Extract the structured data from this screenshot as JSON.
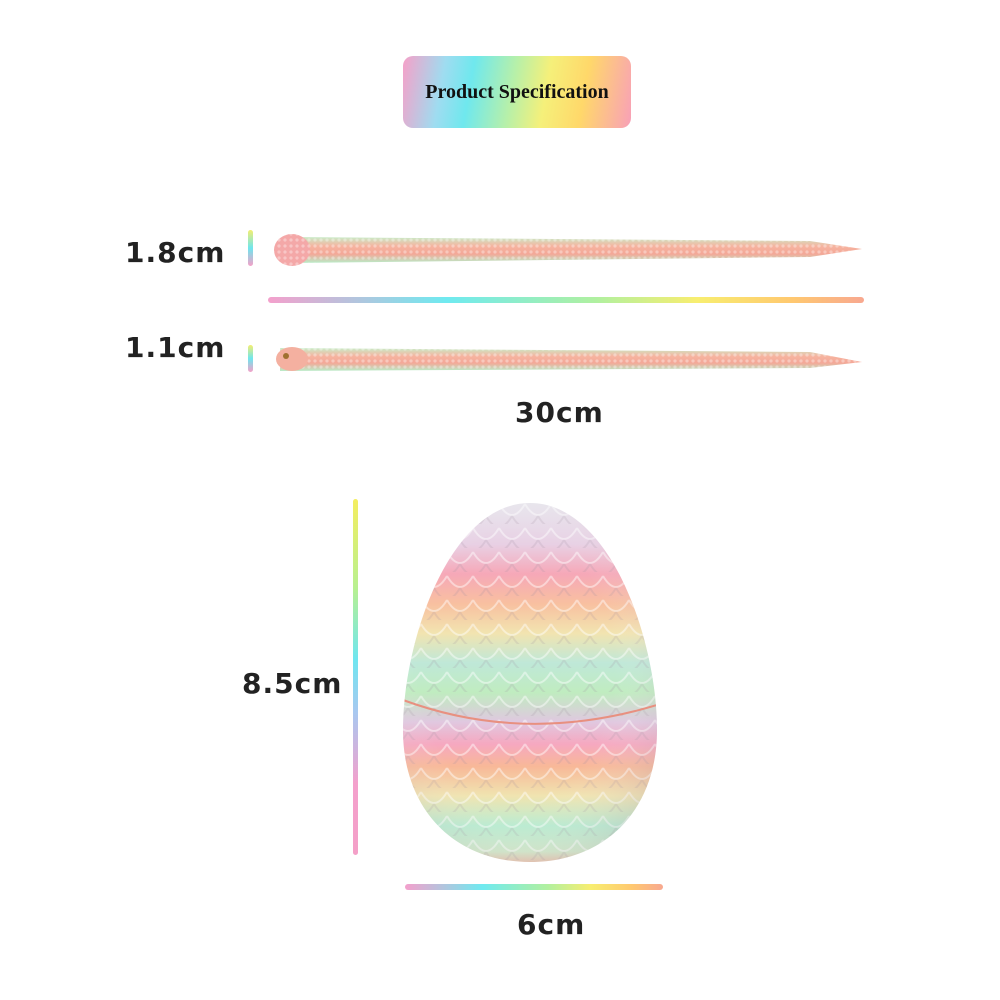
{
  "header": {
    "title": "Product Specification"
  },
  "snake_large": {
    "diameter": "1.8cm"
  },
  "snake_small": {
    "diameter": "1.1cm"
  },
  "snake_length": "30cm",
  "egg": {
    "height": "8.5cm",
    "width": "6cm"
  },
  "colors": {
    "peach": "#f4a890",
    "mint": "#b8ecc8",
    "pink": "#f6a8c0",
    "yellow": "#f8e8a0",
    "gray": "#e6e6ea"
  }
}
